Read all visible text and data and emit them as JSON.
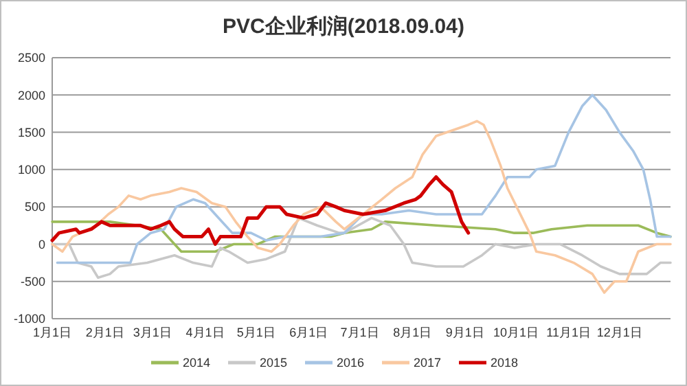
{
  "chart_data": {
    "type": "line",
    "title": "PVC企业利润(2018.09.04)",
    "xlim": [
      "--01-01",
      "--12-31"
    ],
    "xticks": [
      {
        "value": "--01-01",
        "label": "1月1日"
      },
      {
        "value": "--02-01",
        "label": "2月1日"
      },
      {
        "value": "--03-01",
        "label": "3月1日"
      },
      {
        "value": "--04-01",
        "label": "4月1日"
      },
      {
        "value": "--05-01",
        "label": "5月1日"
      },
      {
        "value": "--06-01",
        "label": "6月1日"
      },
      {
        "value": "--07-01",
        "label": "7月1日"
      },
      {
        "value": "--08-01",
        "label": "8月1日"
      },
      {
        "value": "--09-01",
        "label": "9月1日"
      },
      {
        "value": "--10-01",
        "label": "10月1日"
      },
      {
        "value": "--11-01",
        "label": "11月1日"
      },
      {
        "value": "--12-01",
        "label": "12月1日"
      }
    ],
    "ylim": [
      -1000,
      2500
    ],
    "yticks": [
      -1000,
      -500,
      0,
      500,
      1000,
      1500,
      2000,
      2500
    ],
    "grid": "y",
    "legend": "bottom",
    "line_style": "solid",
    "marker": "none",
    "series": [
      {
        "name": "2014",
        "color": "#9bbb59",
        "x": [
          "--01-01",
          "--02-04",
          "--02-20",
          "--03-06",
          "--03-18",
          "--03-22",
          "--04-07",
          "--04-18",
          "--05-02",
          "--05-12",
          "--05-29",
          "--06-14",
          "--06-22",
          "--07-08",
          "--07-16",
          "--08-15",
          "--09-19",
          "--09-30",
          "--10-11",
          "--10-22",
          "--11-12",
          "--12-01",
          "--12-12",
          "--12-23",
          "--12-31"
        ],
        "values": [
          300,
          300,
          250,
          200,
          -100,
          -100,
          -100,
          0,
          0,
          100,
          100,
          100,
          150,
          200,
          300,
          250,
          200,
          150,
          150,
          200,
          250,
          250,
          250,
          150,
          100
        ]
      },
      {
        "name": "2015",
        "color": "#c8c8c8",
        "x": [
          "--01-01",
          "--01-11",
          "--01-16",
          "--01-24",
          "--01-28",
          "--02-04",
          "--02-09",
          "--02-26",
          "--03-14",
          "--03-25",
          "--04-05",
          "--04-10",
          "--04-15",
          "--04-26",
          "--05-07",
          "--05-18",
          "--05-26",
          "--06-06",
          "--06-19",
          "--06-22",
          "--07-08",
          "--07-19",
          "--07-27",
          "--08-01",
          "--08-15",
          "--08-31",
          "--09-11",
          "--09-19",
          "--09-30",
          "--10-13",
          "--10-27",
          "--11-09",
          "--11-20",
          "--12-01",
          "--12-17",
          "--12-25",
          "--12-31"
        ],
        "values": [
          0,
          0,
          -250,
          -300,
          -450,
          -400,
          -300,
          -250,
          -150,
          -250,
          -300,
          -50,
          -100,
          -250,
          -200,
          -100,
          350,
          250,
          150,
          150,
          350,
          250,
          0,
          -250,
          -300,
          -300,
          -150,
          0,
          -50,
          0,
          0,
          -150,
          -300,
          -400,
          -400,
          -250,
          -250
        ]
      },
      {
        "name": "2016",
        "color": "#a6c4e4",
        "x": [
          "--01-04",
          "--01-15",
          "--02-04",
          "--02-09",
          "--02-16",
          "--02-20",
          "--02-28",
          "--03-08",
          "--03-15",
          "--03-25",
          "--04-01",
          "--04-09",
          "--04-17",
          "--04-28",
          "--05-07",
          "--05-18",
          "--05-29",
          "--06-08",
          "--06-22",
          "--07-03",
          "--07-14",
          "--07-30",
          "--08-15",
          "--08-31",
          "--09-11",
          "--09-19",
          "--09-26",
          "--09-30",
          "--10-09",
          "--10-13",
          "--10-24",
          "--11-01",
          "--11-09",
          "--11-15",
          "--11-23",
          "--12-01",
          "--12-09",
          "--12-15",
          "--12-19",
          "--12-23",
          "--12-31"
        ],
        "values": [
          -250,
          -250,
          -250,
          -250,
          -250,
          0,
          150,
          200,
          500,
          600,
          550,
          350,
          150,
          150,
          50,
          100,
          100,
          100,
          150,
          400,
          400,
          450,
          400,
          400,
          400,
          650,
          900,
          900,
          900,
          1000,
          1050,
          1500,
          1850,
          2000,
          1800,
          1500,
          1250,
          1000,
          600,
          100,
          100
        ]
      },
      {
        "name": "2017",
        "color": "#f9c8a0",
        "x": [
          "--01-01",
          "--01-07",
          "--01-13",
          "--01-27",
          "--02-03",
          "--02-09",
          "--02-15",
          "--02-22",
          "--02-28",
          "--03-11",
          "--03-18",
          "--03-27",
          "--04-05",
          "--04-13",
          "--04-19",
          "--04-26",
          "--05-02",
          "--05-10",
          "--05-15",
          "--05-23",
          "--05-29",
          "--06-08",
          "--06-17",
          "--06-22",
          "--07-03",
          "--07-14",
          "--07-22",
          "--08-01",
          "--08-07",
          "--08-15",
          "--09-03",
          "--09-08",
          "--09-12",
          "--09-16",
          "--09-22",
          "--09-26",
          "--10-09",
          "--10-13",
          "--10-24",
          "--11-04",
          "--11-15",
          "--11-22",
          "--11-28",
          "--12-05",
          "--12-12",
          "--12-23",
          "--12-31"
        ],
        "values": [
          0,
          -100,
          100,
          250,
          400,
          500,
          650,
          600,
          650,
          700,
          750,
          700,
          550,
          500,
          300,
          100,
          -50,
          -100,
          0,
          250,
          400,
          500,
          300,
          200,
          400,
          600,
          750,
          900,
          1200,
          1450,
          1600,
          1650,
          1600,
          1400,
          1050,
          750,
          150,
          -100,
          -150,
          -250,
          -400,
          -650,
          -500,
          -500,
          -100,
          0,
          0
        ]
      },
      {
        "name": "2018",
        "color": "#d00000",
        "x": [
          "--01-01",
          "--01-05",
          "--01-15",
          "--01-17",
          "--01-24",
          "--01-30",
          "--02-04",
          "--02-12",
          "--02-22",
          "--02-28",
          "--03-06",
          "--03-11",
          "--03-14",
          "--03-19",
          "--03-30",
          "--04-03",
          "--04-07",
          "--04-10",
          "--04-22",
          "--04-26",
          "--05-02",
          "--05-07",
          "--05-15",
          "--05-19",
          "--05-29",
          "--06-06",
          "--06-11",
          "--06-17",
          "--06-22",
          "--07-03",
          "--07-16",
          "--07-27",
          "--08-03",
          "--08-06",
          "--08-11",
          "--08-15",
          "--08-19",
          "--08-24",
          "--08-27",
          "--08-30",
          "--09-03"
        ],
        "values": [
          50,
          150,
          200,
          150,
          200,
          300,
          250,
          250,
          250,
          200,
          250,
          300,
          200,
          100,
          100,
          200,
          0,
          100,
          100,
          350,
          350,
          500,
          500,
          400,
          350,
          400,
          550,
          500,
          450,
          400,
          450,
          550,
          600,
          650,
          800,
          900,
          800,
          700,
          500,
          300,
          150
        ]
      }
    ]
  }
}
